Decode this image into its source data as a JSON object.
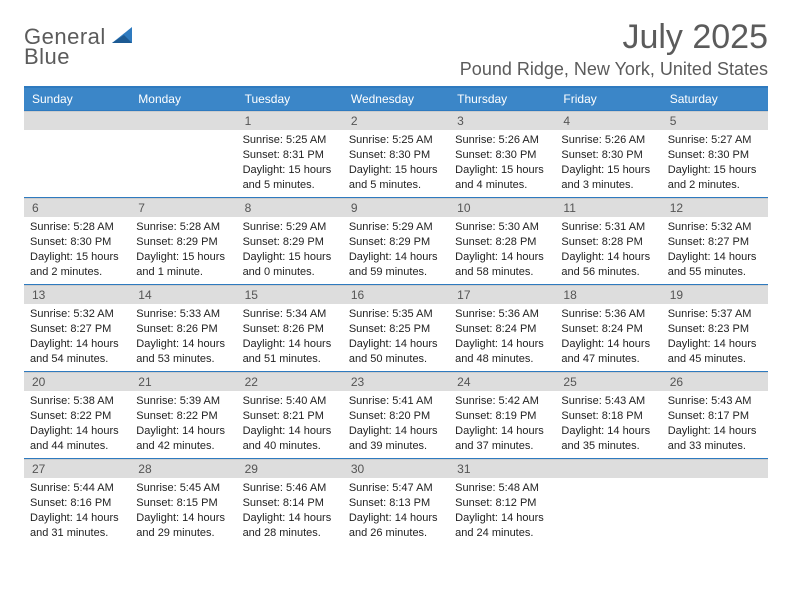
{
  "brand": {
    "word1": "General",
    "word2": "Blue"
  },
  "header": {
    "title": "July 2025",
    "location": "Pound Ridge, New York, United States"
  },
  "colors": {
    "accent": "#3b86c8",
    "accent_dark": "#2e7abf",
    "daynum_bg": "#dddddd",
    "text_muted": "#5b5b5b"
  },
  "calendar": {
    "dow": [
      "Sunday",
      "Monday",
      "Tuesday",
      "Wednesday",
      "Thursday",
      "Friday",
      "Saturday"
    ],
    "weeks": [
      [
        {
          "day": "",
          "sunrise": "",
          "sunset": "",
          "daylight": ""
        },
        {
          "day": "",
          "sunrise": "",
          "sunset": "",
          "daylight": ""
        },
        {
          "day": "1",
          "sunrise": "Sunrise: 5:25 AM",
          "sunset": "Sunset: 8:31 PM",
          "daylight": "Daylight: 15 hours and 5 minutes."
        },
        {
          "day": "2",
          "sunrise": "Sunrise: 5:25 AM",
          "sunset": "Sunset: 8:30 PM",
          "daylight": "Daylight: 15 hours and 5 minutes."
        },
        {
          "day": "3",
          "sunrise": "Sunrise: 5:26 AM",
          "sunset": "Sunset: 8:30 PM",
          "daylight": "Daylight: 15 hours and 4 minutes."
        },
        {
          "day": "4",
          "sunrise": "Sunrise: 5:26 AM",
          "sunset": "Sunset: 8:30 PM",
          "daylight": "Daylight: 15 hours and 3 minutes."
        },
        {
          "day": "5",
          "sunrise": "Sunrise: 5:27 AM",
          "sunset": "Sunset: 8:30 PM",
          "daylight": "Daylight: 15 hours and 2 minutes."
        }
      ],
      [
        {
          "day": "6",
          "sunrise": "Sunrise: 5:28 AM",
          "sunset": "Sunset: 8:30 PM",
          "daylight": "Daylight: 15 hours and 2 minutes."
        },
        {
          "day": "7",
          "sunrise": "Sunrise: 5:28 AM",
          "sunset": "Sunset: 8:29 PM",
          "daylight": "Daylight: 15 hours and 1 minute."
        },
        {
          "day": "8",
          "sunrise": "Sunrise: 5:29 AM",
          "sunset": "Sunset: 8:29 PM",
          "daylight": "Daylight: 15 hours and 0 minutes."
        },
        {
          "day": "9",
          "sunrise": "Sunrise: 5:29 AM",
          "sunset": "Sunset: 8:29 PM",
          "daylight": "Daylight: 14 hours and 59 minutes."
        },
        {
          "day": "10",
          "sunrise": "Sunrise: 5:30 AM",
          "sunset": "Sunset: 8:28 PM",
          "daylight": "Daylight: 14 hours and 58 minutes."
        },
        {
          "day": "11",
          "sunrise": "Sunrise: 5:31 AM",
          "sunset": "Sunset: 8:28 PM",
          "daylight": "Daylight: 14 hours and 56 minutes."
        },
        {
          "day": "12",
          "sunrise": "Sunrise: 5:32 AM",
          "sunset": "Sunset: 8:27 PM",
          "daylight": "Daylight: 14 hours and 55 minutes."
        }
      ],
      [
        {
          "day": "13",
          "sunrise": "Sunrise: 5:32 AM",
          "sunset": "Sunset: 8:27 PM",
          "daylight": "Daylight: 14 hours and 54 minutes."
        },
        {
          "day": "14",
          "sunrise": "Sunrise: 5:33 AM",
          "sunset": "Sunset: 8:26 PM",
          "daylight": "Daylight: 14 hours and 53 minutes."
        },
        {
          "day": "15",
          "sunrise": "Sunrise: 5:34 AM",
          "sunset": "Sunset: 8:26 PM",
          "daylight": "Daylight: 14 hours and 51 minutes."
        },
        {
          "day": "16",
          "sunrise": "Sunrise: 5:35 AM",
          "sunset": "Sunset: 8:25 PM",
          "daylight": "Daylight: 14 hours and 50 minutes."
        },
        {
          "day": "17",
          "sunrise": "Sunrise: 5:36 AM",
          "sunset": "Sunset: 8:24 PM",
          "daylight": "Daylight: 14 hours and 48 minutes."
        },
        {
          "day": "18",
          "sunrise": "Sunrise: 5:36 AM",
          "sunset": "Sunset: 8:24 PM",
          "daylight": "Daylight: 14 hours and 47 minutes."
        },
        {
          "day": "19",
          "sunrise": "Sunrise: 5:37 AM",
          "sunset": "Sunset: 8:23 PM",
          "daylight": "Daylight: 14 hours and 45 minutes."
        }
      ],
      [
        {
          "day": "20",
          "sunrise": "Sunrise: 5:38 AM",
          "sunset": "Sunset: 8:22 PM",
          "daylight": "Daylight: 14 hours and 44 minutes."
        },
        {
          "day": "21",
          "sunrise": "Sunrise: 5:39 AM",
          "sunset": "Sunset: 8:22 PM",
          "daylight": "Daylight: 14 hours and 42 minutes."
        },
        {
          "day": "22",
          "sunrise": "Sunrise: 5:40 AM",
          "sunset": "Sunset: 8:21 PM",
          "daylight": "Daylight: 14 hours and 40 minutes."
        },
        {
          "day": "23",
          "sunrise": "Sunrise: 5:41 AM",
          "sunset": "Sunset: 8:20 PM",
          "daylight": "Daylight: 14 hours and 39 minutes."
        },
        {
          "day": "24",
          "sunrise": "Sunrise: 5:42 AM",
          "sunset": "Sunset: 8:19 PM",
          "daylight": "Daylight: 14 hours and 37 minutes."
        },
        {
          "day": "25",
          "sunrise": "Sunrise: 5:43 AM",
          "sunset": "Sunset: 8:18 PM",
          "daylight": "Daylight: 14 hours and 35 minutes."
        },
        {
          "day": "26",
          "sunrise": "Sunrise: 5:43 AM",
          "sunset": "Sunset: 8:17 PM",
          "daylight": "Daylight: 14 hours and 33 minutes."
        }
      ],
      [
        {
          "day": "27",
          "sunrise": "Sunrise: 5:44 AM",
          "sunset": "Sunset: 8:16 PM",
          "daylight": "Daylight: 14 hours and 31 minutes."
        },
        {
          "day": "28",
          "sunrise": "Sunrise: 5:45 AM",
          "sunset": "Sunset: 8:15 PM",
          "daylight": "Daylight: 14 hours and 29 minutes."
        },
        {
          "day": "29",
          "sunrise": "Sunrise: 5:46 AM",
          "sunset": "Sunset: 8:14 PM",
          "daylight": "Daylight: 14 hours and 28 minutes."
        },
        {
          "day": "30",
          "sunrise": "Sunrise: 5:47 AM",
          "sunset": "Sunset: 8:13 PM",
          "daylight": "Daylight: 14 hours and 26 minutes."
        },
        {
          "day": "31",
          "sunrise": "Sunrise: 5:48 AM",
          "sunset": "Sunset: 8:12 PM",
          "daylight": "Daylight: 14 hours and 24 minutes."
        },
        {
          "day": "",
          "sunrise": "",
          "sunset": "",
          "daylight": ""
        },
        {
          "day": "",
          "sunrise": "",
          "sunset": "",
          "daylight": ""
        }
      ]
    ]
  }
}
